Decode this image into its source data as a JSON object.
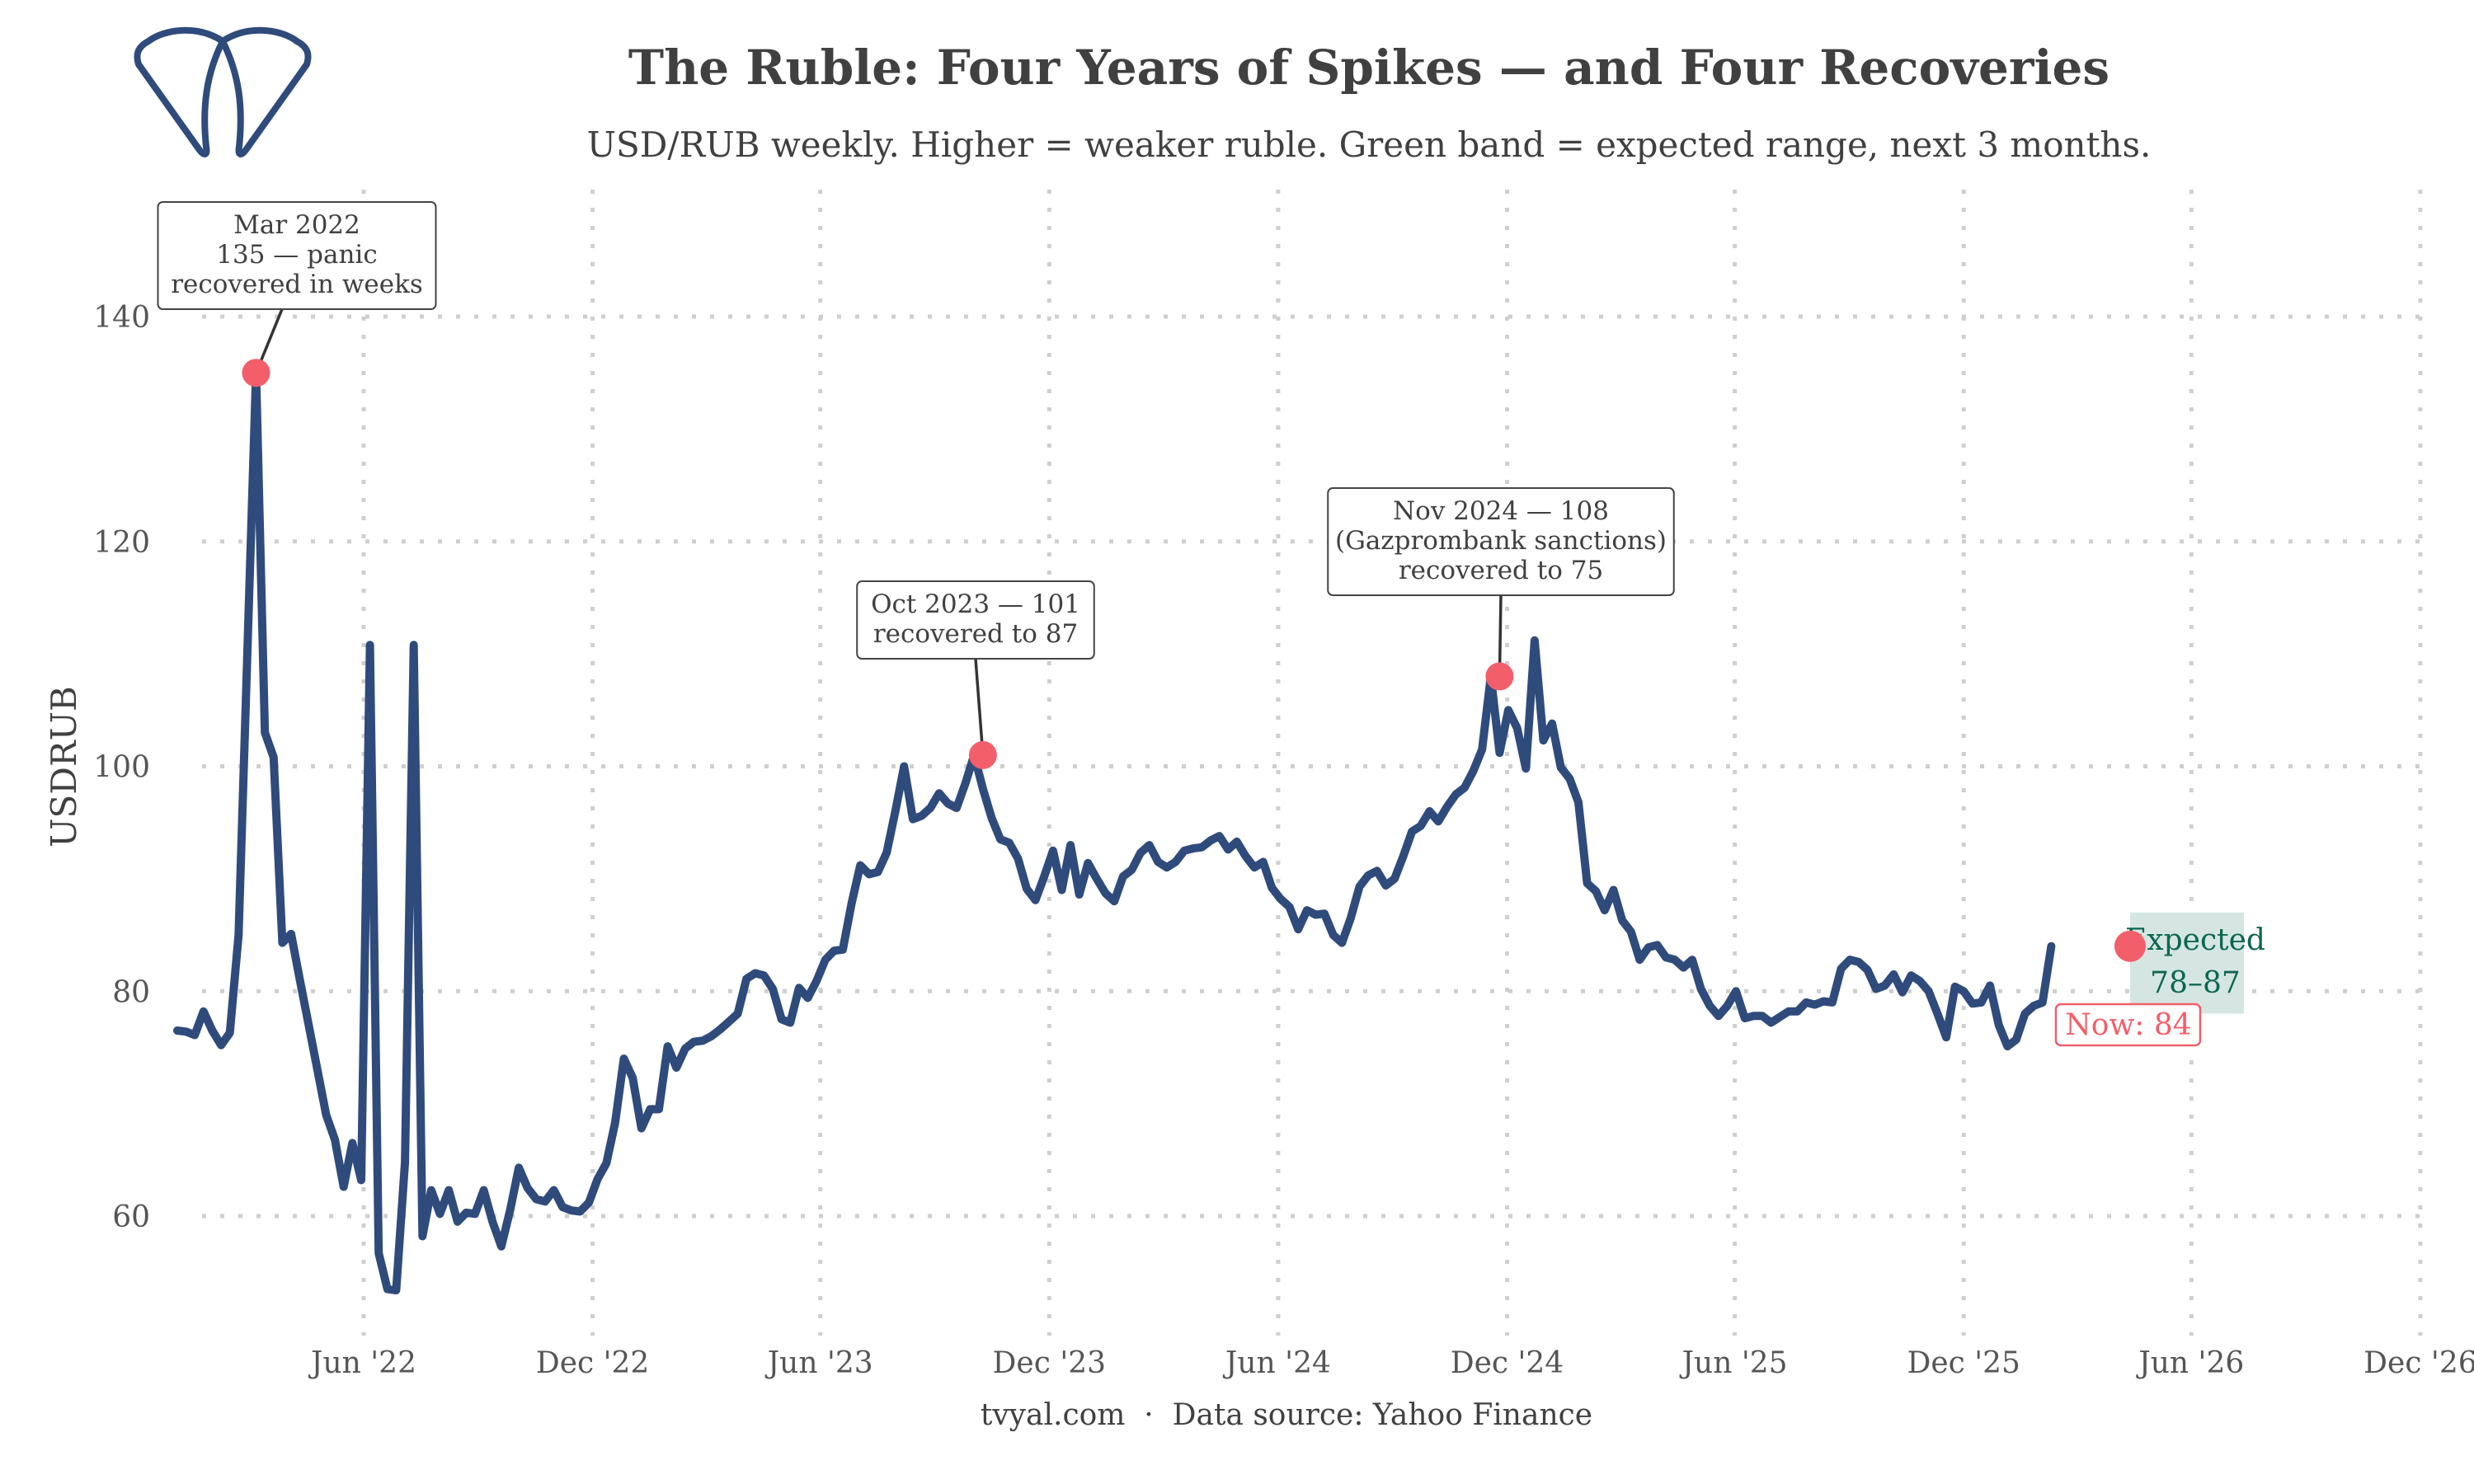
{
  "chart_data": {
    "type": "line",
    "title": "The Ruble: Four Years of Spikes — and Four Recoveries",
    "subtitle": "USD/RUB weekly. Higher = weaker ruble. Green band = expected range, next 3 months.",
    "xlabel": "",
    "ylabel": "USDRUB",
    "ylim": [
      50,
      152
    ],
    "xlim": [
      "2022-01",
      "2026-12"
    ],
    "grid": true,
    "y_ticks": [
      60,
      80,
      100,
      120,
      140
    ],
    "x_ticks": [
      {
        "date": "2022-06-01",
        "label": "Jun '22"
      },
      {
        "date": "2022-12-01",
        "label": "Dec '22"
      },
      {
        "date": "2023-06-01",
        "label": "Jun '23"
      },
      {
        "date": "2023-12-01",
        "label": "Dec '23"
      },
      {
        "date": "2024-06-01",
        "label": "Jun '24"
      },
      {
        "date": "2024-12-01",
        "label": "Dec '24"
      },
      {
        "date": "2025-06-01",
        "label": "Jun '25"
      },
      {
        "date": "2025-12-01",
        "label": "Dec '25"
      },
      {
        "date": "2026-06-01",
        "label": "Jun '26"
      },
      {
        "date": "2026-12-01",
        "label": "Dec '26"
      }
    ],
    "series": [
      {
        "name": "USDRUB",
        "color": "#2f4b7c",
        "start": "2022-01-03",
        "step_weeks": 1,
        "values": [
          76.5,
          76.4,
          76.1,
          78.2,
          76.5,
          75.2,
          76.3,
          85,
          110,
          135,
          103,
          100.8,
          84.3,
          85.1,
          81,
          77,
          73,
          69,
          66.8,
          62.6,
          66.5,
          63.2,
          110.8,
          56.7,
          53.5,
          53.4,
          64.8,
          110.8,
          58.2,
          62.3,
          60.2,
          62.3,
          59.5,
          60.3,
          60.2,
          62.3,
          59.5,
          57.3,
          60.5,
          64.3,
          62.5,
          61.5,
          61.3,
          62.3,
          60.8,
          60.5,
          60.4,
          61.2,
          63.3,
          64.7,
          68.3,
          74.0,
          72.3,
          67.8,
          69.5,
          69.5,
          75.1,
          73.2,
          74.9,
          75.5,
          75.6,
          76.0,
          76.6,
          77.3,
          78.0,
          81.1,
          81.6,
          81.4,
          80.2,
          77.5,
          77.2,
          80.3,
          79.4,
          80.9,
          82.8,
          83.6,
          83.7,
          87.8,
          91.2,
          90.4,
          90.6,
          92.3,
          96.0,
          100.0,
          95.3,
          95.6,
          96.3,
          97.6,
          96.7,
          96.3,
          98.5,
          101.0,
          98.0,
          95.4,
          93.5,
          93.2,
          91.8,
          89.1,
          88.1,
          90.2,
          92.5,
          89.0,
          93.0,
          88.6,
          91.4,
          90.0,
          88.7,
          88.0,
          90.2,
          90.8,
          92.3,
          93.0,
          91.5,
          91.0,
          91.5,
          92.5,
          92.7,
          92.8,
          93.4,
          93.8,
          92.6,
          93.3,
          92.0,
          91.0,
          91.5,
          89.2,
          88.2,
          87.5,
          85.5,
          87.2,
          86.8,
          86.9,
          85.0,
          84.3,
          86.5,
          89.3,
          90.3,
          90.7,
          89.4,
          90.0,
          92.0,
          94.2,
          94.7,
          96.0,
          95.1,
          96.4,
          97.5,
          98.1,
          99.6,
          101.5,
          108.0,
          101.2,
          105.0,
          103.4,
          99.8,
          111.2,
          102.3,
          103.8,
          99.9,
          98.9,
          96.8,
          89.6,
          88.9,
          87.2,
          89.0,
          86.3,
          85.3,
          82.8,
          83.9,
          84.1,
          83.0,
          82.8,
          82.1,
          82.8,
          80.2,
          78.7,
          77.8,
          78.7,
          80.0,
          77.6,
          77.8,
          77.8,
          77.2,
          77.7,
          78.2,
          78.2,
          79.0,
          78.8,
          79.1,
          79.0,
          82.0,
          82.8,
          82.6,
          81.9,
          80.2,
          80.5,
          81.5,
          79.9,
          81.4,
          80.9,
          80.0,
          78.0,
          75.9,
          80.4,
          80.0,
          78.9,
          79.0,
          80.5,
          77.0,
          75.1,
          75.7,
          78.0,
          78.7,
          79.0,
          84.0
        ]
      }
    ],
    "annotations": [
      {
        "date": "2022-03-07",
        "value": 135,
        "lines": [
          "Mar 2022",
          "135 — panic",
          "recovered in weeks"
        ]
      },
      {
        "date": "2023-10-09",
        "value": 101,
        "lines": [
          "Oct 2023 — 101",
          "recovered to 87"
        ]
      },
      {
        "date": "2024-11-25",
        "value": 108,
        "lines": [
          "Nov 2024 — 108",
          "(Gazprombank sanctions)",
          "recovered to 75"
        ]
      }
    ],
    "current": {
      "date": "2026-04-13",
      "value": 84,
      "label": "Now: 84"
    },
    "expected_band": {
      "low": 78,
      "high": 87,
      "start": "2026-04-13",
      "end": "2026-07-13",
      "lines": [
        "Expected",
        "78–87"
      ],
      "color": "#d5e6e2",
      "text_color": "#0d6650"
    },
    "caption": "tvyal.com  ·  Data source: Yahoo Finance",
    "colors": {
      "line": "#2f4b7c",
      "highlight": "#f25f6b",
      "text": "#404040",
      "grid": "#cfcfcf"
    }
  },
  "logo": {
    "icon": "tvyal-logo-icon"
  }
}
